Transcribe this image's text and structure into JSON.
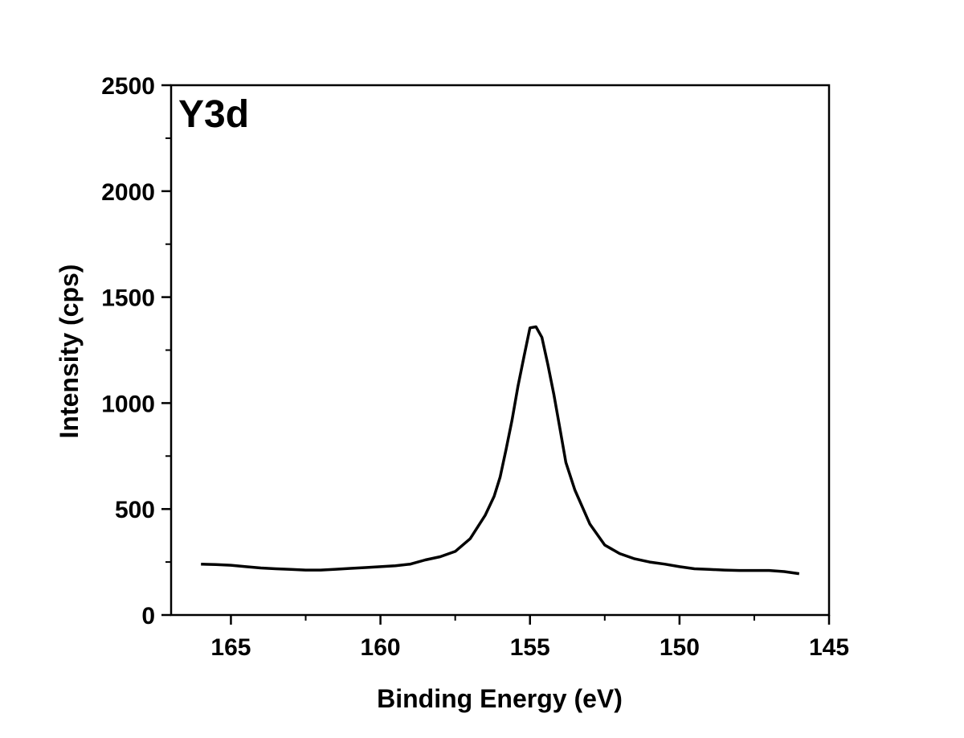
{
  "chart_data": {
    "type": "line",
    "annotation": "Y3d",
    "xlabel": "Binding Energy (eV)",
    "ylabel": "Intensity (cps)",
    "xlim": [
      167,
      145
    ],
    "ylim": [
      0,
      2500
    ],
    "x_reversed": true,
    "x_ticks": [
      165,
      160,
      155,
      150,
      145
    ],
    "y_ticks": [
      0,
      500,
      1000,
      1500,
      2000,
      2500
    ],
    "grid": false,
    "line_color": "#000000",
    "series": [
      {
        "x": [
          166.0,
          165.5,
          165.0,
          164.5,
          164.0,
          163.5,
          163.0,
          162.5,
          162.0,
          161.5,
          161.0,
          160.5,
          160.0,
          159.5,
          159.0,
          158.5,
          158.0,
          157.5,
          157.0,
          156.5,
          156.2,
          156.0,
          155.8,
          155.6,
          155.4,
          155.2,
          155.0,
          154.8,
          154.6,
          154.4,
          154.2,
          154.0,
          153.8,
          153.5,
          153.0,
          152.5,
          152.0,
          151.5,
          151.0,
          150.5,
          150.0,
          149.5,
          149.0,
          148.5,
          148.0,
          147.5,
          147.0,
          146.5,
          146.0
        ],
        "y": [
          240,
          238,
          235,
          228,
          222,
          218,
          215,
          212,
          212,
          216,
          220,
          224,
          228,
          232,
          240,
          260,
          275,
          300,
          360,
          470,
          560,
          650,
          780,
          920,
          1080,
          1220,
          1355,
          1360,
          1310,
          1180,
          1040,
          880,
          720,
          590,
          430,
          330,
          290,
          265,
          250,
          240,
          228,
          218,
          215,
          212,
          210,
          210,
          210,
          205,
          195
        ]
      }
    ]
  }
}
